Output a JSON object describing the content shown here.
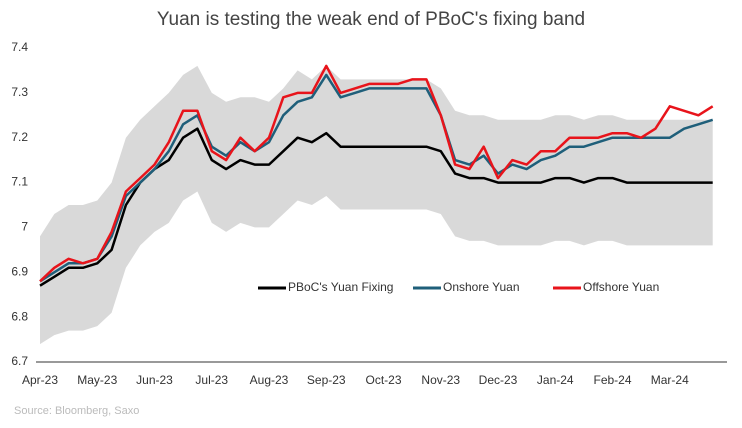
{
  "chart_data": {
    "type": "line",
    "title": "Yuan is testing the weak end of PBoC's fixing band",
    "source": "Source: Bloomberg, Saxo",
    "categories": [
      "Apr-23",
      null,
      null,
      null,
      "May-23",
      null,
      null,
      null,
      "Jun-23",
      null,
      null,
      null,
      "Jul-23",
      null,
      null,
      null,
      "Aug-23",
      null,
      null,
      null,
      "Sep-23",
      null,
      null,
      null,
      "Oct-23",
      null,
      null,
      null,
      "Nov-23",
      null,
      null,
      null,
      "Dec-23",
      null,
      null,
      null,
      "Jan-24",
      null,
      null,
      null,
      "Feb-24",
      null,
      null,
      null,
      "Mar-24",
      null,
      null,
      null
    ],
    "ylim": [
      6.7,
      7.4
    ],
    "yticks": [
      6.7,
      6.8,
      6.9,
      7,
      7.1,
      7.2,
      7.3,
      7.4
    ],
    "grid": false,
    "legend": "right",
    "band": {
      "color": "#d9d9d9",
      "upper": [
        6.98,
        7.03,
        7.05,
        7.05,
        7.06,
        7.1,
        7.2,
        7.24,
        7.27,
        7.3,
        7.34,
        7.36,
        7.3,
        7.28,
        7.29,
        7.29,
        7.28,
        7.31,
        7.35,
        7.33,
        7.36,
        7.33,
        7.33,
        7.33,
        7.33,
        7.33,
        7.33,
        7.33,
        7.31,
        7.26,
        7.25,
        7.25,
        7.24,
        7.24,
        7.24,
        7.24,
        7.25,
        7.25,
        7.24,
        7.25,
        7.25,
        7.24,
        7.24,
        7.24,
        7.24,
        7.24,
        7.24,
        7.24
      ],
      "lower": [
        6.74,
        6.76,
        6.77,
        6.77,
        6.78,
        6.81,
        6.91,
        6.96,
        6.99,
        7.01,
        7.06,
        7.08,
        7.01,
        6.99,
        7.01,
        7.0,
        7.0,
        7.03,
        7.06,
        7.05,
        7.07,
        7.04,
        7.04,
        7.04,
        7.04,
        7.04,
        7.04,
        7.04,
        7.03,
        6.98,
        6.97,
        6.97,
        6.96,
        6.96,
        6.96,
        6.96,
        6.97,
        6.97,
        6.96,
        6.97,
        6.97,
        6.96,
        6.96,
        6.96,
        6.96,
        6.96,
        6.96,
        6.96
      ]
    },
    "series": [
      {
        "name": "PBoC's Yuan Fixing",
        "color": "#000000",
        "values": [
          6.87,
          6.89,
          6.91,
          6.91,
          6.92,
          6.95,
          7.05,
          7.1,
          7.13,
          7.15,
          7.2,
          7.22,
          7.15,
          7.13,
          7.15,
          7.14,
          7.14,
          7.17,
          7.2,
          7.19,
          7.21,
          7.18,
          7.18,
          7.18,
          7.18,
          7.18,
          7.18,
          7.18,
          7.17,
          7.12,
          7.11,
          7.11,
          7.1,
          7.1,
          7.1,
          7.1,
          7.11,
          7.11,
          7.1,
          7.11,
          7.11,
          7.1,
          7.1,
          7.1,
          7.1,
          7.1,
          7.1,
          7.1
        ]
      },
      {
        "name": "Onshore Yuan",
        "color": "#1f5f7a",
        "values": [
          6.88,
          6.9,
          6.92,
          6.92,
          6.93,
          6.98,
          7.07,
          7.1,
          7.13,
          7.17,
          7.23,
          7.25,
          7.18,
          7.16,
          7.19,
          7.17,
          7.19,
          7.25,
          7.28,
          7.29,
          7.34,
          7.29,
          7.3,
          7.31,
          7.31,
          7.31,
          7.31,
          7.31,
          7.25,
          7.15,
          7.14,
          7.16,
          7.12,
          7.14,
          7.13,
          7.15,
          7.16,
          7.18,
          7.18,
          7.19,
          7.2,
          7.2,
          7.2,
          7.2,
          7.2,
          7.22,
          7.23,
          7.24
        ]
      },
      {
        "name": "Offshore Yuan",
        "color": "#e8141b",
        "values": [
          6.88,
          6.91,
          6.93,
          6.92,
          6.93,
          6.99,
          7.08,
          7.11,
          7.14,
          7.19,
          7.26,
          7.26,
          7.17,
          7.15,
          7.2,
          7.17,
          7.2,
          7.29,
          7.3,
          7.3,
          7.36,
          7.3,
          7.31,
          7.32,
          7.32,
          7.32,
          7.33,
          7.33,
          7.25,
          7.14,
          7.13,
          7.18,
          7.11,
          7.15,
          7.14,
          7.17,
          7.17,
          7.2,
          7.2,
          7.2,
          7.21,
          7.21,
          7.2,
          7.22,
          7.27,
          7.26,
          7.25,
          7.27
        ]
      }
    ]
  }
}
